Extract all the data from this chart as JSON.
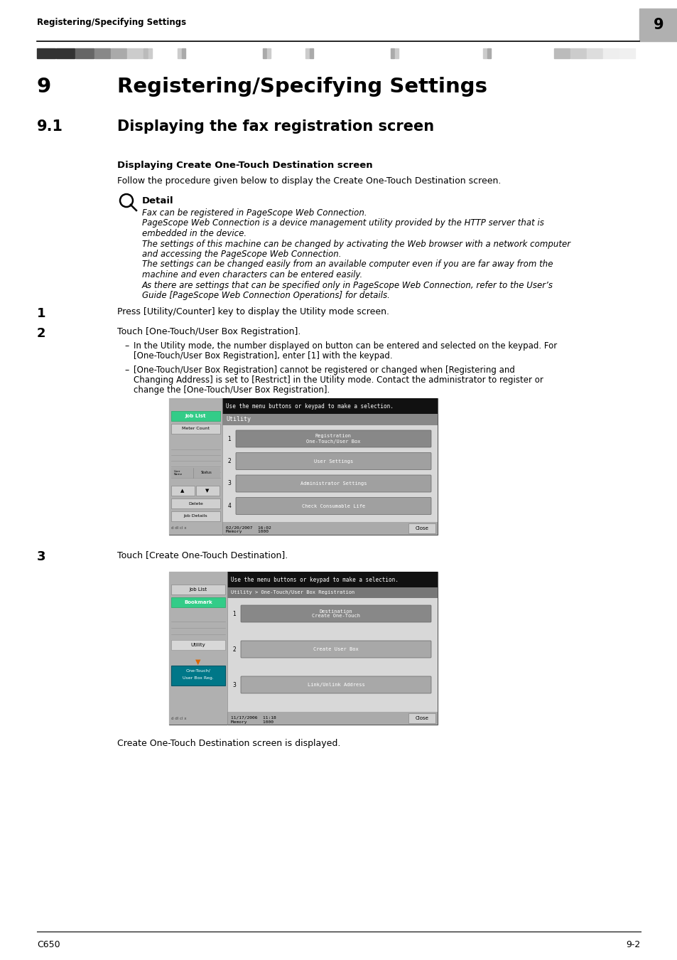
{
  "page_title": "Registering/Specifying Settings",
  "chapter_num": "9",
  "section_num": "9",
  "section_title": "Registering/Specifying Settings",
  "subsection_num": "9.1",
  "subsection_title": "Displaying the fax registration screen",
  "subsubsection_title": "Displaying Create One-Touch Destination screen",
  "intro_text": "Follow the procedure given below to display the Create One-Touch Destination screen.",
  "detail_label": "Detail",
  "detail_lines": [
    "Fax can be registered in PageScope Web Connection.",
    "PageScope Web Connection is a device management utility provided by the HTTP server that is",
    "embedded in the device.",
    "The settings of this machine can be changed by activating the Web browser with a network computer",
    "and accessing the PageScope Web Connection.",
    "The settings can be changed easily from an available computer even if you are far away from the",
    "machine and even characters can be entered easily.",
    "As there are settings that can be specified only in PageScope Web Connection, refer to the User’s",
    "Guide [PageScope Web Connection Operations] for details."
  ],
  "step1_num": "1",
  "step1_text": "Press [Utility/Counter] key to display the Utility mode screen.",
  "step2_num": "2",
  "step2_text": "Touch [One-Touch/User Box Registration].",
  "step2_bullet1_lines": [
    "In the Utility mode, the number displayed on button can be entered and selected on the keypad. For",
    "[One-Touch/User Box Registration], enter [1] with the keypad."
  ],
  "step2_bullet2_lines": [
    "[One-Touch/User Box Registration] cannot be registered or changed when [Registering and",
    "Changing Address] is set to [Restrict] in the Utility mode. Contact the administrator to register or",
    "change the [One-Touch/User Box Registration]."
  ],
  "step3_num": "3",
  "step3_text": "Touch [Create One-Touch Destination].",
  "final_text": "Create One-Touch Destination screen is displayed.",
  "footer_left": "C650",
  "footer_right": "9-2",
  "bg_color": "#ffffff",
  "screen1_msg": "Use the menu buttons or keypad to make a selection.",
  "screen1_utility_label": "Utility",
  "screen1_menu": [
    "One-Touch/User Box\nRegistration",
    "User Settings",
    "Administrator Settings",
    "Check Consumable Life"
  ],
  "screen1_left_btns": [
    "Job List",
    "Meter Count"
  ],
  "screen1_bottom": "02/20/2007  16:02\nMemory      1000",
  "screen2_msg": "Use the menu buttons or keypad to make a selection.",
  "screen2_breadcrumb": "Utility > One-Touch/User Box Registration",
  "screen2_menu": [
    "Create One-Touch\nDestination",
    "Create User Box",
    "Link/Unlink Address"
  ],
  "screen2_left_btns": [
    "Job List",
    "Bookmark"
  ],
  "screen2_utility": "Utility",
  "screen2_onetouchbtn": "One-Touch/\nUser Box Reg.",
  "screen2_bottom": "11/17/2006  11:18\nMemory      1000"
}
